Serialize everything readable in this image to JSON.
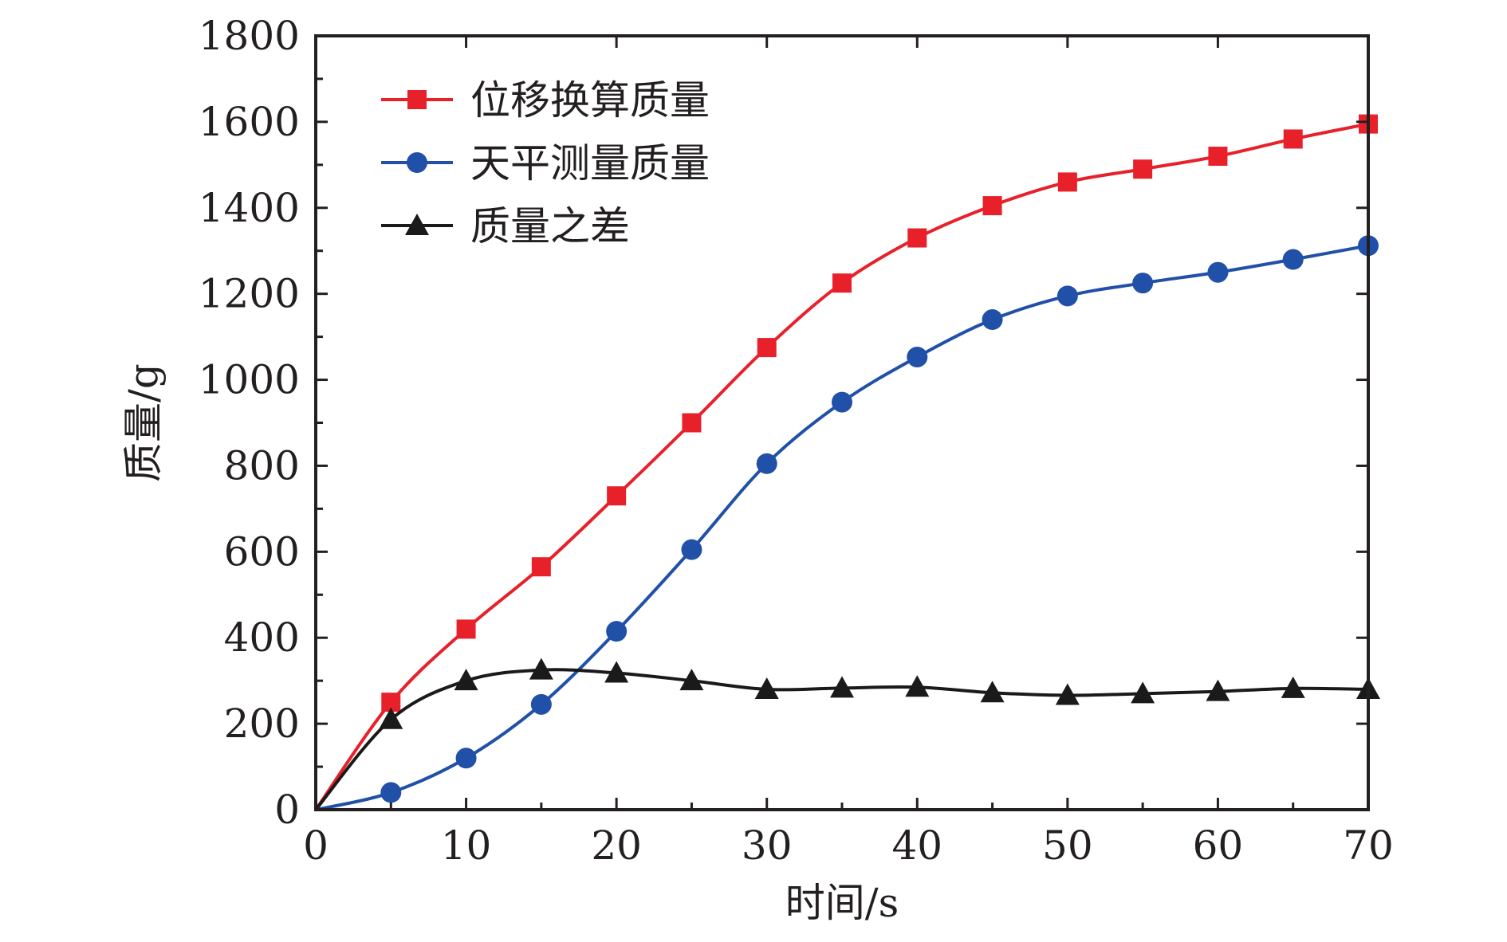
{
  "chart_data": {
    "type": "line",
    "title": "",
    "xlabel": "时间/s",
    "ylabel": "质量/g",
    "xlim": [
      0,
      70
    ],
    "ylim": [
      0,
      1800
    ],
    "xticks": [
      0,
      10,
      20,
      30,
      40,
      50,
      60,
      70
    ],
    "yticks": [
      0,
      200,
      400,
      600,
      800,
      1000,
      1200,
      1400,
      1600,
      1800
    ],
    "grid": false,
    "legend_position": "top-left",
    "series": [
      {
        "name": "位移换算质量",
        "color": "#e8202a",
        "marker": "square",
        "x": [
          0,
          5,
          10,
          15,
          20,
          25,
          30,
          35,
          40,
          45,
          50,
          55,
          60,
          65,
          70
        ],
        "values": [
          0,
          250,
          420,
          565,
          730,
          900,
          1075,
          1225,
          1330,
          1405,
          1460,
          1490,
          1520,
          1560,
          1595
        ]
      },
      {
        "name": "天平测量质量",
        "color": "#2050a8",
        "marker": "circle",
        "x": [
          0,
          5,
          10,
          15,
          20,
          25,
          30,
          35,
          40,
          45,
          50,
          55,
          60,
          65,
          70
        ],
        "values": [
          0,
          40,
          120,
          245,
          415,
          605,
          805,
          948,
          1053,
          1140,
          1195,
          1225,
          1250,
          1280,
          1312
        ]
      },
      {
        "name": "质量之差",
        "color": "#1a1a1a",
        "marker": "triangle",
        "x": [
          0,
          5,
          10,
          15,
          20,
          25,
          30,
          35,
          40,
          45,
          50,
          55,
          60,
          65,
          70
        ],
        "values": [
          0,
          210,
          300,
          325,
          318,
          300,
          280,
          283,
          285,
          272,
          266,
          270,
          275,
          282,
          280
        ]
      }
    ]
  }
}
